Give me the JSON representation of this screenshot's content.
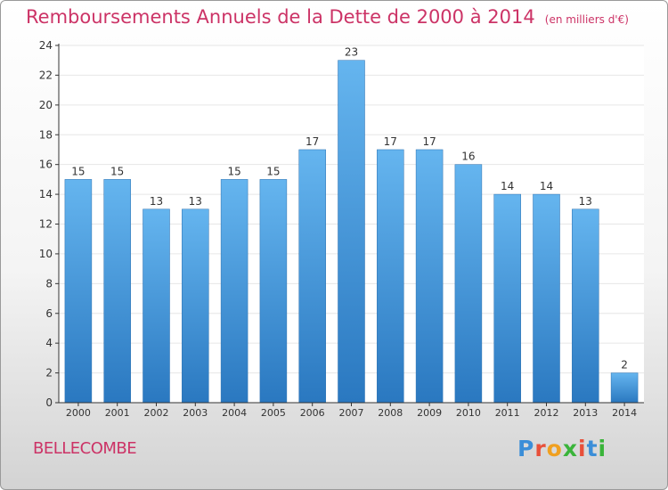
{
  "title": "Remboursements Annuels de la Dette de 2000 à 2014",
  "subtitle": "(en milliers d'€)",
  "commune": "BELLECOMBE",
  "logo": {
    "text": "Proxiti",
    "letters": [
      "P",
      "r",
      "o",
      "x",
      "i",
      "t",
      "i"
    ],
    "colors": [
      "#3b8ed8",
      "#e8503a",
      "#f0a020",
      "#3ab43a",
      "#e8503a",
      "#3b8ed8",
      "#3ab43a"
    ]
  },
  "colors": {
    "title": "#cc3366",
    "bar_top": "#65b5ef",
    "bar_bottom": "#2a78c0",
    "axis": "#333333",
    "grid": "#e6e6e6"
  },
  "chart_data": {
    "type": "bar",
    "categories": [
      "2000",
      "2001",
      "2002",
      "2003",
      "2004",
      "2005",
      "2006",
      "2007",
      "2008",
      "2009",
      "2010",
      "2011",
      "2012",
      "2013",
      "2014"
    ],
    "values": [
      15,
      15,
      13,
      13,
      15,
      15,
      17,
      23,
      17,
      17,
      16,
      14,
      14,
      13,
      2
    ],
    "ylim": [
      0,
      24
    ],
    "yticks": [
      0,
      2,
      4,
      6,
      8,
      10,
      12,
      14,
      16,
      18,
      20,
      22,
      24
    ],
    "grid": true,
    "data_labels": true
  }
}
